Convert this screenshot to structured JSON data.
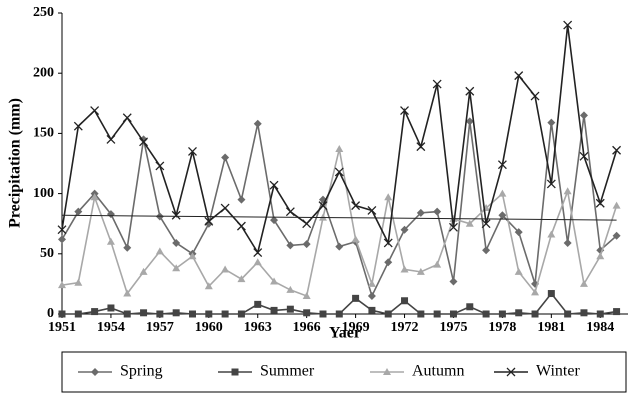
{
  "chart_data": {
    "type": "line",
    "x_label": "Yaer",
    "y_label": "Precipitation (mm)",
    "x": [
      1951,
      1952,
      1953,
      1954,
      1955,
      1956,
      1957,
      1958,
      1959,
      1960,
      1961,
      1962,
      1963,
      1964,
      1965,
      1966,
      1967,
      1968,
      1969,
      1970,
      1971,
      1972,
      1973,
      1974,
      1975,
      1976,
      1977,
      1978,
      1979,
      1980,
      1981,
      1982,
      1983,
      1984,
      1985
    ],
    "series": [
      {
        "name": "Spring",
        "color": "#6b6b6b",
        "marker": "diamond",
        "values": [
          62,
          85,
          100,
          83,
          55,
          145,
          81,
          59,
          50,
          75,
          130,
          95,
          158,
          78,
          57,
          58,
          95,
          56,
          60,
          15,
          43,
          70,
          84,
          85,
          27,
          160,
          53,
          82,
          68,
          25,
          159,
          59,
          165,
          53,
          65
        ]
      },
      {
        "name": "Summer",
        "color": "#444444",
        "marker": "square",
        "values": [
          0,
          0,
          2,
          5,
          0,
          1,
          0,
          1,
          0,
          0,
          0,
          0,
          8,
          3,
          4,
          1,
          0,
          0,
          13,
          3,
          0,
          11,
          0,
          0,
          0,
          6,
          0,
          0,
          1,
          0,
          17,
          0,
          1,
          0,
          2
        ]
      },
      {
        "name": "Autumn",
        "color": "#a8a8a8",
        "marker": "triangle",
        "values": [
          24,
          26,
          97,
          60,
          17,
          35,
          52,
          38,
          48,
          23,
          37,
          29,
          43,
          27,
          20,
          15,
          80,
          137,
          62,
          25,
          97,
          37,
          35,
          41,
          79,
          75,
          88,
          100,
          35,
          18,
          66,
          102,
          25,
          48,
          90
        ]
      },
      {
        "name": "Winter",
        "color": "#222222",
        "marker": "cross",
        "values": [
          70,
          156,
          169,
          145,
          163,
          143,
          123,
          82,
          135,
          77,
          88,
          73,
          51,
          107,
          85,
          75,
          90,
          118,
          90,
          86,
          59,
          169,
          139,
          191,
          72,
          185,
          75,
          124,
          198,
          181,
          108,
          240,
          131,
          92,
          136
        ]
      }
    ],
    "trend": {
      "color": "#222222",
      "x": [
        1951,
        1985
      ],
      "values": [
        82,
        78
      ]
    },
    "xlim": [
      1951,
      1985.7
    ],
    "xticks": [
      1951,
      1954,
      1957,
      1960,
      1963,
      1966,
      1969,
      1972,
      1975,
      1978,
      1981,
      1984
    ],
    "ylim": [
      0,
      250
    ],
    "yticks": [
      0,
      50,
      100,
      150,
      200,
      250
    ],
    "grid": false
  }
}
